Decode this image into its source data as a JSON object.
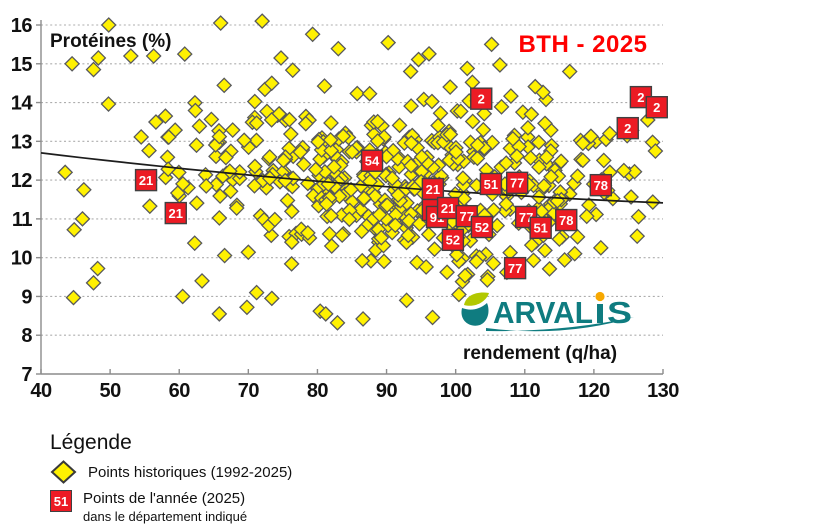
{
  "page": {
    "background": "#FFFFFF"
  },
  "chart_data": {
    "type": "scatter",
    "title": "BTH - 2025",
    "title_color": "#FF0000",
    "ylabel": "Protéines (%)",
    "xlabel": "rendement (q/ha)",
    "xlim": [
      40,
      130
    ],
    "ylim": [
      7,
      16
    ],
    "x_ticks": [
      40,
      50,
      60,
      70,
      80,
      90,
      100,
      110,
      120,
      130
    ],
    "y_ticks": [
      7,
      8,
      9,
      10,
      11,
      12,
      13,
      14,
      15,
      16
    ],
    "grid": "horizontal-dotted",
    "legend_position": "below-left",
    "series": [
      {
        "name": "Points historiques (1992-2025)",
        "marker": "diamond",
        "fill": "#FFF101",
        "stroke": "#58595B",
        "featured_points": [
          [
            44.5,
            15.0
          ],
          [
            47.6,
            14.85
          ],
          [
            48.3,
            15.15
          ],
          [
            53.0,
            15.2
          ],
          [
            56.3,
            15.2
          ],
          [
            49.8,
            16.0
          ],
          [
            66.0,
            16.05
          ],
          [
            72.0,
            16.1
          ],
          [
            60.8,
            15.25
          ],
          [
            105.2,
            15.5
          ],
          [
            106.4,
            14.97
          ],
          [
            99.2,
            14.4
          ],
          [
            58.0,
            13.65
          ],
          [
            62.5,
            12.9
          ],
          [
            43.5,
            12.2
          ],
          [
            46.2,
            11.75
          ],
          [
            46.0,
            11.0
          ],
          [
            44.8,
            10.72
          ],
          [
            47.6,
            9.35
          ],
          [
            44.7,
            8.97
          ],
          [
            48.2,
            9.72
          ],
          [
            60.5,
            9.0
          ],
          [
            63.3,
            9.4
          ],
          [
            65.8,
            8.55
          ],
          [
            69.8,
            8.72
          ],
          [
            71.2,
            9.1
          ],
          [
            73.4,
            8.95
          ],
          [
            80.4,
            8.62
          ],
          [
            81.2,
            8.55
          ],
          [
            82.9,
            8.32
          ],
          [
            86.6,
            8.42
          ],
          [
            92.9,
            8.9
          ],
          [
            103.0,
            9.9
          ],
          [
            122.3,
            13.2
          ],
          [
            127.8,
            13.55
          ],
          [
            118.4,
            12.95
          ],
          [
            116.5,
            14.8
          ],
          [
            128.9,
            12.75
          ]
        ],
        "cloud": {
          "count": 540,
          "seed": 7,
          "x_mean": 94,
          "x_sd": 17,
          "x_min": 44,
          "x_max": 129.6,
          "y_sd": 1.1,
          "y_offset": 0.18,
          "y_min": 8.3,
          "y_max": 16.05
        }
      },
      {
        "name": "Points de l'année (2025) dans le département indiqué",
        "marker": "labeled-square",
        "fill": "#EC1B24",
        "stroke": "#404041",
        "label_color": "#FFFFFF",
        "points": [
          {
            "dept": "21",
            "x": 55.2,
            "y": 12.0
          },
          {
            "dept": "21",
            "x": 59.5,
            "y": 11.15
          },
          {
            "dept": "54",
            "x": 87.9,
            "y": 12.5
          },
          {
            "dept": "2",
            "x": 103.7,
            "y": 14.1
          },
          {
            "dept": "21",
            "x": 96.7,
            "y": 11.77
          },
          {
            "dept": "91",
            "x": 96.7,
            "y": 11.23
          },
          {
            "dept": "91",
            "x": 97.3,
            "y": 11.05
          },
          {
            "dept": "21",
            "x": 98.9,
            "y": 11.28
          },
          {
            "dept": "77",
            "x": 101.6,
            "y": 11.07
          },
          {
            "dept": "52",
            "x": 103.8,
            "y": 10.79
          },
          {
            "dept": "52",
            "x": 99.6,
            "y": 10.46
          },
          {
            "dept": "51",
            "x": 105.1,
            "y": 11.9
          },
          {
            "dept": "77",
            "x": 108.9,
            "y": 11.93
          },
          {
            "dept": "77",
            "x": 110.2,
            "y": 11.05
          },
          {
            "dept": "51",
            "x": 112.3,
            "y": 10.77
          },
          {
            "dept": "78",
            "x": 116.0,
            "y": 10.97
          },
          {
            "dept": "78",
            "x": 121.0,
            "y": 11.87
          },
          {
            "dept": "77",
            "x": 108.6,
            "y": 9.73
          },
          {
            "dept": "2",
            "x": 124.9,
            "y": 13.34
          },
          {
            "dept": "2",
            "x": 126.8,
            "y": 14.14
          },
          {
            "dept": "2",
            "x": 129.1,
            "y": 13.88
          }
        ]
      }
    ],
    "trend_line": {
      "type": "quadratic",
      "coefficients": {
        "a": 13.676,
        "b": -0.02748,
        "c": 7.74e-05
      },
      "color": "#1D1D1D",
      "x_start": 40,
      "x_end": 130
    }
  },
  "logo": {
    "text": "ARVALIS",
    "color": "#0F7C80",
    "leaf_green": "#B2C800",
    "dot_orange": "#F7A800"
  },
  "legend": {
    "title": "Légende",
    "historical_label": "Points historiques (1992-2025)",
    "year_chip_label": "51",
    "year_label": "Points de l'année (2025)",
    "year_sublabel": "dans le département indiqué"
  }
}
